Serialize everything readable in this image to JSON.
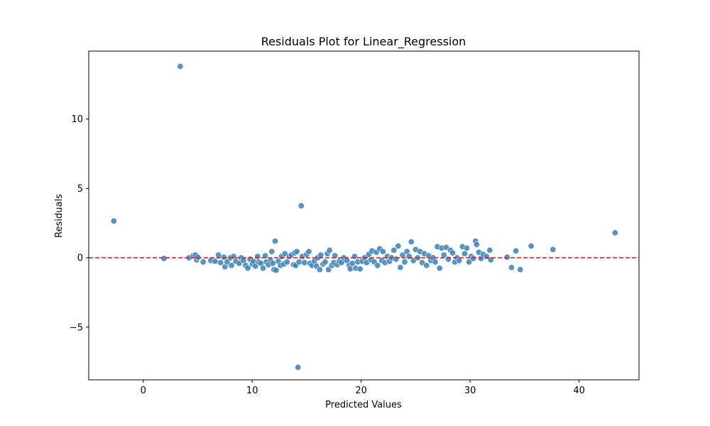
{
  "chart_data": {
    "type": "scatter",
    "title": "Residuals Plot for Linear_Regression",
    "xlabel": "Predicted Values",
    "ylabel": "Residuals",
    "xlim": [
      -5,
      45.5
    ],
    "ylim": [
      -8.8,
      14.9
    ],
    "xticks": [
      0,
      10,
      20,
      30,
      40
    ],
    "yticks": [
      -5,
      0,
      5,
      10
    ],
    "xtick_labels": [
      "0",
      "10",
      "20",
      "30",
      "40"
    ],
    "ytick_labels": [
      "−5",
      "0",
      "5",
      "10"
    ],
    "grid": false,
    "legend": "none",
    "reference_line": {
      "y": 0,
      "style": "dashed",
      "color": "#d62728"
    },
    "marker_color": "#3a80b8",
    "series": [
      {
        "points": [
          [
            -2.7,
            2.65
          ],
          [
            3.4,
            13.8
          ],
          [
            14.2,
            -7.9
          ],
          [
            14.5,
            3.75
          ],
          [
            43.3,
            1.8
          ],
          [
            1.9,
            -0.05
          ],
          [
            4.2,
            0.0
          ],
          [
            4.6,
            0.15
          ],
          [
            4.8,
            0.2
          ],
          [
            4.9,
            -0.15
          ],
          [
            5.0,
            0.05
          ],
          [
            5.5,
            -0.3
          ],
          [
            6.2,
            -0.2
          ],
          [
            6.6,
            -0.25
          ],
          [
            6.9,
            0.2
          ],
          [
            7.1,
            -0.35
          ],
          [
            7.4,
            0.05
          ],
          [
            7.5,
            -0.65
          ],
          [
            7.7,
            -0.3
          ],
          [
            8.0,
            0.0
          ],
          [
            8.1,
            -0.55
          ],
          [
            8.3,
            0.1
          ],
          [
            8.5,
            -0.25
          ],
          [
            8.8,
            -0.4
          ],
          [
            9.0,
            0.0
          ],
          [
            9.2,
            -0.2
          ],
          [
            9.4,
            -0.55
          ],
          [
            9.6,
            -0.75
          ],
          [
            9.8,
            -0.1
          ],
          [
            10.0,
            -0.45
          ],
          [
            10.1,
            -0.25
          ],
          [
            10.3,
            -0.6
          ],
          [
            10.5,
            0.1
          ],
          [
            10.6,
            -0.3
          ],
          [
            10.8,
            -0.4
          ],
          [
            11.0,
            -0.75
          ],
          [
            11.2,
            0.15
          ],
          [
            11.3,
            -0.3
          ],
          [
            11.5,
            -0.5
          ],
          [
            11.7,
            -0.2
          ],
          [
            11.8,
            0.45
          ],
          [
            11.9,
            -0.4
          ],
          [
            12.0,
            -0.85
          ],
          [
            12.1,
            1.2
          ],
          [
            12.2,
            -0.9
          ],
          [
            12.4,
            -0.25
          ],
          [
            12.6,
            -0.55
          ],
          [
            12.7,
            0.1
          ],
          [
            12.9,
            -0.45
          ],
          [
            13.0,
            0.3
          ],
          [
            13.2,
            -0.3
          ],
          [
            13.4,
            0.1
          ],
          [
            13.6,
            0.2
          ],
          [
            13.8,
            -0.5
          ],
          [
            13.9,
            0.35
          ],
          [
            14.0,
            -0.55
          ],
          [
            14.1,
            0.45
          ],
          [
            14.3,
            -0.3
          ],
          [
            14.6,
            0.1
          ],
          [
            14.8,
            -0.35
          ],
          [
            15.0,
            0.25
          ],
          [
            15.2,
            0.45
          ],
          [
            15.3,
            -0.4
          ],
          [
            15.5,
            -0.55
          ],
          [
            15.7,
            -0.25
          ],
          [
            15.9,
            -0.6
          ],
          [
            16.0,
            0.0
          ],
          [
            16.2,
            -0.85
          ],
          [
            16.3,
            0.2
          ],
          [
            16.5,
            -0.45
          ],
          [
            16.7,
            -0.3
          ],
          [
            16.9,
            0.3
          ],
          [
            17.0,
            -0.85
          ],
          [
            17.1,
            0.55
          ],
          [
            17.3,
            -0.55
          ],
          [
            17.5,
            -0.35
          ],
          [
            17.6,
            0.15
          ],
          [
            17.8,
            -0.5
          ],
          [
            18.0,
            -0.25
          ],
          [
            18.2,
            -0.35
          ],
          [
            18.4,
            0.0
          ],
          [
            18.7,
            -0.2
          ],
          [
            18.9,
            -0.55
          ],
          [
            19.0,
            -0.8
          ],
          [
            19.2,
            -0.4
          ],
          [
            19.4,
            0.1
          ],
          [
            19.5,
            -0.75
          ],
          [
            19.7,
            -0.3
          ],
          [
            19.9,
            -0.8
          ],
          [
            20.1,
            -0.25
          ],
          [
            20.3,
            0.0
          ],
          [
            20.5,
            -0.35
          ],
          [
            20.7,
            0.25
          ],
          [
            20.9,
            -0.15
          ],
          [
            21.0,
            0.5
          ],
          [
            21.2,
            -0.3
          ],
          [
            21.4,
            0.4
          ],
          [
            21.5,
            -0.55
          ],
          [
            21.7,
            0.65
          ],
          [
            21.9,
            -0.2
          ],
          [
            22.0,
            0.45
          ],
          [
            22.2,
            -0.35
          ],
          [
            22.4,
            0.1
          ],
          [
            22.6,
            -0.25
          ],
          [
            22.8,
            0.0
          ],
          [
            23.0,
            0.55
          ],
          [
            23.2,
            -0.1
          ],
          [
            23.4,
            0.85
          ],
          [
            23.6,
            -0.7
          ],
          [
            23.8,
            0.2
          ],
          [
            24.0,
            -0.3
          ],
          [
            24.2,
            0.45
          ],
          [
            24.4,
            0.1
          ],
          [
            24.6,
            1.15
          ],
          [
            24.8,
            -0.2
          ],
          [
            25.0,
            0.6
          ],
          [
            25.2,
            0.0
          ],
          [
            25.4,
            0.45
          ],
          [
            25.6,
            -0.35
          ],
          [
            25.8,
            0.3
          ],
          [
            26.0,
            -0.55
          ],
          [
            26.2,
            0.15
          ],
          [
            26.4,
            -0.2
          ],
          [
            26.6,
            0.0
          ],
          [
            26.8,
            -0.3
          ],
          [
            27.0,
            0.8
          ],
          [
            27.2,
            -0.75
          ],
          [
            27.4,
            0.7
          ],
          [
            27.6,
            0.2
          ],
          [
            27.8,
            0.75
          ],
          [
            28.0,
            -0.1
          ],
          [
            28.2,
            0.55
          ],
          [
            28.4,
            0.35
          ],
          [
            28.6,
            -0.3
          ],
          [
            28.8,
            0.0
          ],
          [
            29.0,
            -0.2
          ],
          [
            29.3,
            0.8
          ],
          [
            29.5,
            0.3
          ],
          [
            29.7,
            0.7
          ],
          [
            29.9,
            -0.3
          ],
          [
            30.1,
            0.1
          ],
          [
            30.3,
            -0.05
          ],
          [
            30.5,
            1.2
          ],
          [
            30.6,
            0.95
          ],
          [
            30.8,
            0.4
          ],
          [
            31.0,
            -0.05
          ],
          [
            31.2,
            0.25
          ],
          [
            31.5,
            0.1
          ],
          [
            31.8,
            0.55
          ],
          [
            31.9,
            -0.15
          ],
          [
            33.4,
            0.05
          ],
          [
            33.8,
            -0.7
          ],
          [
            34.2,
            0.5
          ],
          [
            34.6,
            -0.85
          ],
          [
            35.6,
            0.85
          ],
          [
            37.6,
            0.6
          ]
        ]
      }
    ]
  }
}
